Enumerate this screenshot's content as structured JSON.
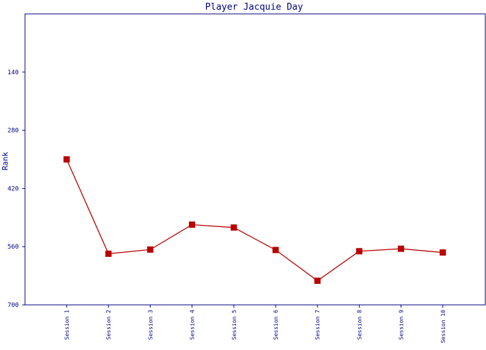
{
  "chart_data": {
    "type": "line",
    "title": "Player Jacquie Day",
    "xlabel": "",
    "ylabel": "Rank",
    "y_inverted": true,
    "ylim": [
      0,
      700
    ],
    "yticks": [
      140,
      280,
      420,
      560,
      700
    ],
    "grid": false,
    "legend": "none",
    "categories": [
      "Session 1",
      "Session 2",
      "Session 3",
      "Session 4",
      "Session 5",
      "Session 6",
      "Session 7",
      "Session 8",
      "Session 9",
      "Session 10"
    ],
    "series": [
      {
        "values": [
          350,
          577,
          567,
          507,
          514,
          568,
          642,
          571,
          565,
          574
        ],
        "color": "#b80000"
      }
    ]
  },
  "colors": {
    "axis": "#000080",
    "text": "#000080",
    "line": "#b80000",
    "marker": "#b80000"
  }
}
